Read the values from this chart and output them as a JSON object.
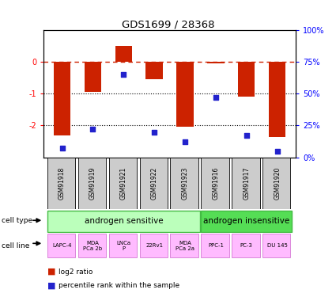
{
  "title": "GDS1699 / 28368",
  "samples": [
    "GSM91918",
    "GSM91919",
    "GSM91921",
    "GSM91922",
    "GSM91923",
    "GSM91916",
    "GSM91917",
    "GSM91920"
  ],
  "log2_ratio": [
    -2.3,
    -0.95,
    0.5,
    -0.55,
    -2.05,
    -0.05,
    -1.1,
    -2.35
  ],
  "pct_rank": [
    7,
    22,
    65,
    20,
    12,
    47,
    17,
    5
  ],
  "ylim_left": [
    -3,
    1
  ],
  "ylim_right": [
    0,
    100
  ],
  "yticks_left": [
    -2,
    -1,
    0
  ],
  "yticks_right": [
    0,
    25,
    50,
    75,
    100
  ],
  "ytick_labels_left": [
    "-2",
    "-1",
    "0"
  ],
  "ytick_labels_right": [
    "0%",
    "25%",
    "50%",
    "75%",
    "100%"
  ],
  "bar_color": "#cc2200",
  "dot_color": "#2222cc",
  "dashed_color": "#cc2200",
  "grid_color": "#000000",
  "cell_type_sensitive": "androgen sensitive",
  "cell_type_insensitive": "androgen insensitive",
  "cell_type_sensitive_color": "#bbffbb",
  "cell_type_insensitive_color": "#55dd55",
  "cell_line_color": "#ffbbff",
  "cell_lines": [
    "LAPC-4",
    "MDA\nPCa 2b",
    "LNCa\nP",
    "22Rv1",
    "MDA\nPCa 2a",
    "PPC-1",
    "PC-3",
    "DU 145"
  ],
  "n_sensitive": 5,
  "n_insensitive": 3,
  "label_cell_type": "cell type",
  "label_cell_line": "cell line",
  "legend_bar": "log2 ratio",
  "legend_dot": "percentile rank within the sample",
  "sample_label_color": "#cccccc"
}
